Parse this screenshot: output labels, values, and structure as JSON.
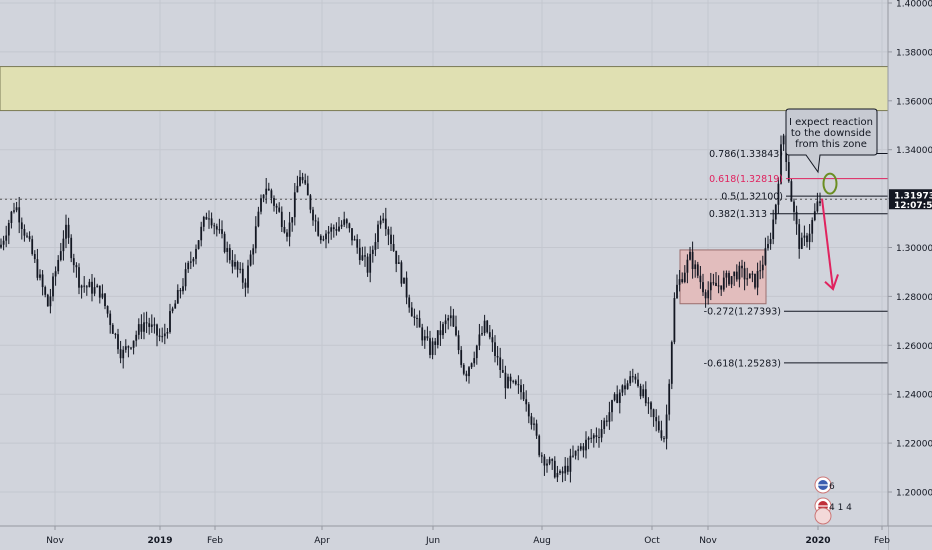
{
  "chart_data": {
    "type": "candlestick",
    "ylim": [
      1.19,
      1.4
    ],
    "grid": true,
    "y_ticks": [
      "1.40000",
      "1.38000",
      "1.36000",
      "1.34000",
      "1.32000",
      "1.30000",
      "1.28000",
      "1.26000",
      "1.24000",
      "1.22000",
      "1.20000"
    ],
    "x_ticks": [
      "Nov",
      "2019",
      "Feb",
      "Apr",
      "Jun",
      "Aug",
      "Oct",
      "Nov",
      "2020",
      "Feb"
    ],
    "price_series": {
      "x": [
        "Nov",
        "2019",
        "Feb",
        "Apr",
        "Jun",
        "Aug",
        "Oct",
        "Nov",
        "2020"
      ],
      "close": [
        1.29,
        1.275,
        1.315,
        1.315,
        1.28,
        1.215,
        1.235,
        1.29,
        1.3197
      ]
    },
    "current_price": {
      "value": "1.31973",
      "countdown": "12:07:56"
    },
    "supply_zone": {
      "range": [
        1.356,
        1.374
      ]
    },
    "demand_box": {
      "x_range": [
        "Oct",
        "Nov"
      ],
      "range": [
        1.277,
        1.299
      ]
    },
    "fib_levels": [
      {
        "ratio": "0.786",
        "price": 1.33843,
        "label": "0.786(1.33843)"
      },
      {
        "ratio": "0.618",
        "price": 1.32819,
        "label": "0.618(1.32819)"
      },
      {
        "ratio": "0.5",
        "price": 1.321,
        "label": "0.5(1.32100)"
      },
      {
        "ratio": "0.382",
        "price": 1.31381,
        "label": "0.382(1.313"
      },
      {
        "ratio": "-0.272",
        "price": 1.27393,
        "label": "-0.272(1.27393)"
      },
      {
        "ratio": "-0.618",
        "price": 1.25283,
        "label": "-0.618(1.25283)"
      }
    ],
    "annotation": {
      "text": [
        "I expect reaction",
        "to the downside",
        "from this zone"
      ]
    },
    "event_badges": [
      {
        "text": "6",
        "flag": "gbp"
      },
      {
        "text": "4 1 4",
        "flag": "usd"
      }
    ],
    "colors": {
      "background": "#d1d4dc",
      "grid": "#c4c7cf",
      "candle": "#131722",
      "zone": "#e0e0b2",
      "box": "#e2bdbd",
      "fib": "#131722",
      "fib_highlight": "#e0235f",
      "ellipse": "#6b8e23",
      "arrow": "#e0235f"
    }
  }
}
